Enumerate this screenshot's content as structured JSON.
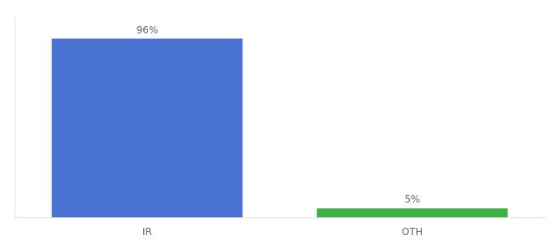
{
  "chart_data": {
    "type": "bar",
    "categories": [
      "IR",
      "OTH"
    ],
    "values": [
      96,
      5
    ],
    "value_labels": [
      "96%",
      "5%"
    ],
    "colors": [
      "#4b73d4",
      "#3cb043"
    ],
    "ylim": [
      0,
      108
    ],
    "data_labels": true,
    "tick_labels": "x",
    "grid": false
  }
}
